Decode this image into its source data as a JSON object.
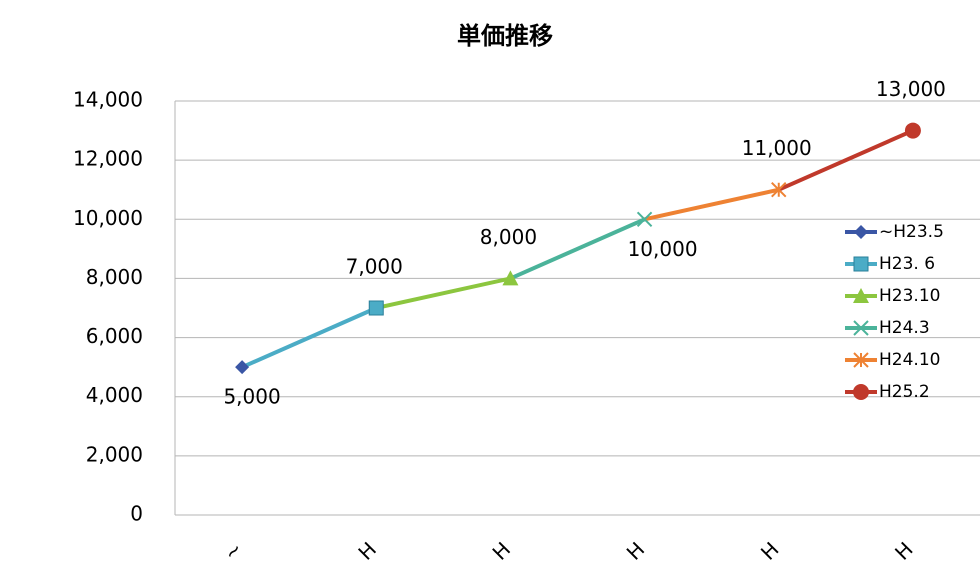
{
  "chart_data": {
    "type": "line",
    "title": "単価推移",
    "categories": [
      "~H23.5",
      "H23. 6",
      "H23.10",
      "H24.3",
      "H24.10",
      "H25.2"
    ],
    "x_tick_labels": [
      "~",
      "H",
      "H",
      "H",
      "H",
      "H"
    ],
    "values": [
      5000,
      7000,
      8000,
      10000,
      11000,
      13000
    ],
    "value_labels": [
      "5,000",
      "7,000",
      "8,000",
      "10,000",
      "11,000",
      "13,000"
    ],
    "label_positions": [
      "below",
      "above",
      "above",
      "below",
      "above",
      "above"
    ],
    "colors": [
      "#3a56a5",
      "#4bacc6",
      "#8cc63f",
      "#4bb39a",
      "#ee8233",
      "#c0392b"
    ],
    "markers": [
      "diamond",
      "square",
      "triangle",
      "x",
      "star",
      "circle"
    ],
    "ylim": [
      0,
      14000
    ],
    "yticks": [
      0,
      {
        "value": 2000,
        "label": "2,000"
      },
      {
        "value": 4000,
        "label": "4,000"
      },
      {
        "value": 6000,
        "label": "6,000"
      },
      {
        "value": 8000,
        "label": "8,000"
      },
      {
        "value": 10000,
        "label": "10,000"
      },
      {
        "value": 12000,
        "label": "12,000"
      },
      {
        "value": 14000,
        "label": "14,000"
      }
    ],
    "grid": true,
    "legend": "right"
  }
}
